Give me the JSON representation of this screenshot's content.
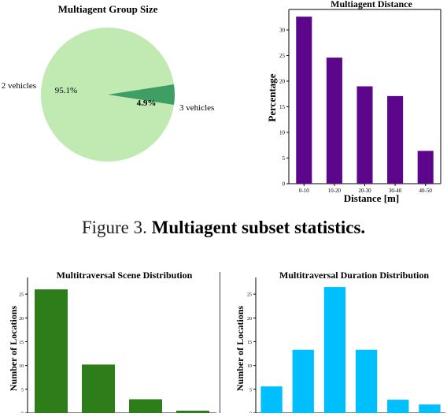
{
  "caption": {
    "prefix": "Figure 3.",
    "bold": "Multiagent subset statistics."
  },
  "chart_data": [
    {
      "id": "pie",
      "type": "pie",
      "title": "Multiagent Group Size",
      "slices": [
        {
          "label": "2 vehicles",
          "value": 95.1,
          "pct_label": "95.1%",
          "color": "#c1eab3"
        },
        {
          "label": "3 vehicles",
          "value": 4.9,
          "pct_label": "4.9%",
          "color": "#3f9e63"
        }
      ]
    },
    {
      "id": "distance",
      "type": "bar",
      "title": "Multiagent Distance",
      "xlabel": "Distance [m]",
      "ylabel": "Percentage",
      "categories": [
        "0-10",
        "10-20",
        "20-30",
        "30-40",
        "40-50"
      ],
      "values": [
        32.6,
        24.6,
        19.0,
        17.1,
        6.4
      ],
      "ylim": [
        0,
        34
      ],
      "yticks": [
        0,
        5,
        10,
        15,
        20,
        25,
        30
      ],
      "color": "#5c068c"
    },
    {
      "id": "scene",
      "type": "bar",
      "title": "Multitraversal Scene Distribution",
      "xlabel": "",
      "ylabel": "Number of Locations",
      "categories": [
        "",
        "",
        "",
        ""
      ],
      "values": [
        26,
        10.2,
        2.9,
        0.5
      ],
      "ylim": [
        0,
        28.5
      ],
      "yticks": [
        0,
        5,
        10,
        15,
        20,
        25
      ],
      "color": "#2e7d1b"
    },
    {
      "id": "duration",
      "type": "bar",
      "title": "Multitraversal Duration Distribution",
      "xlabel": "",
      "ylabel": "Number of Locations",
      "categories": [
        "",
        "",
        "",
        "",
        "",
        ""
      ],
      "values": [
        5.6,
        13.3,
        26.5,
        13.3,
        2.8,
        1.8
      ],
      "ylim": [
        0,
        28.5
      ],
      "yticks": [
        0,
        5,
        10,
        15,
        20,
        25
      ],
      "color": "#00bfff"
    }
  ]
}
